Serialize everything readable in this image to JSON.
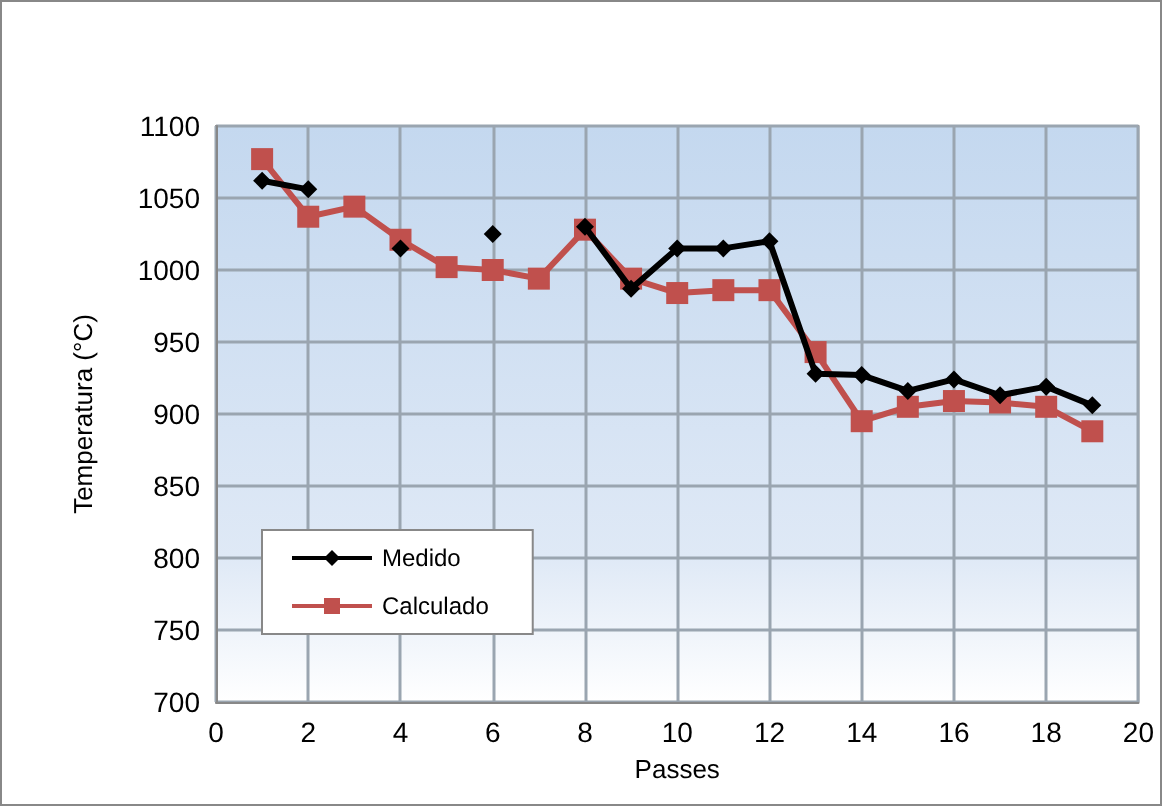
{
  "chart_data": {
    "type": "line",
    "xlabel": "Passes",
    "ylabel": "Temperatura (°C)",
    "x": [
      1,
      2,
      3,
      4,
      5,
      6,
      7,
      8,
      9,
      10,
      11,
      12,
      13,
      14,
      15,
      16,
      17,
      18,
      19
    ],
    "series": [
      {
        "name": "Medido",
        "color": "#000000",
        "marker": "diamond",
        "values": [
          1062,
          1056,
          null,
          1015,
          null,
          1025,
          null,
          1030,
          987,
          1015,
          1015,
          1020,
          928,
          927,
          916,
          924,
          913,
          919,
          906
        ]
      },
      {
        "name": "Calculado",
        "color": "#c0504d",
        "marker": "square",
        "values": [
          1077,
          1037,
          1044,
          1021,
          1002,
          1000,
          994,
          1028,
          994,
          984,
          986,
          986,
          943,
          895,
          905,
          909,
          908,
          905,
          888
        ]
      }
    ],
    "xlim": [
      0,
      20
    ],
    "xticks": [
      0,
      2,
      4,
      6,
      8,
      10,
      12,
      14,
      16,
      18,
      20
    ],
    "ylim": [
      700,
      1100
    ],
    "yticks": [
      700,
      750,
      800,
      850,
      900,
      950,
      1000,
      1050,
      1100
    ],
    "grid": true,
    "legend": "bottom left"
  }
}
